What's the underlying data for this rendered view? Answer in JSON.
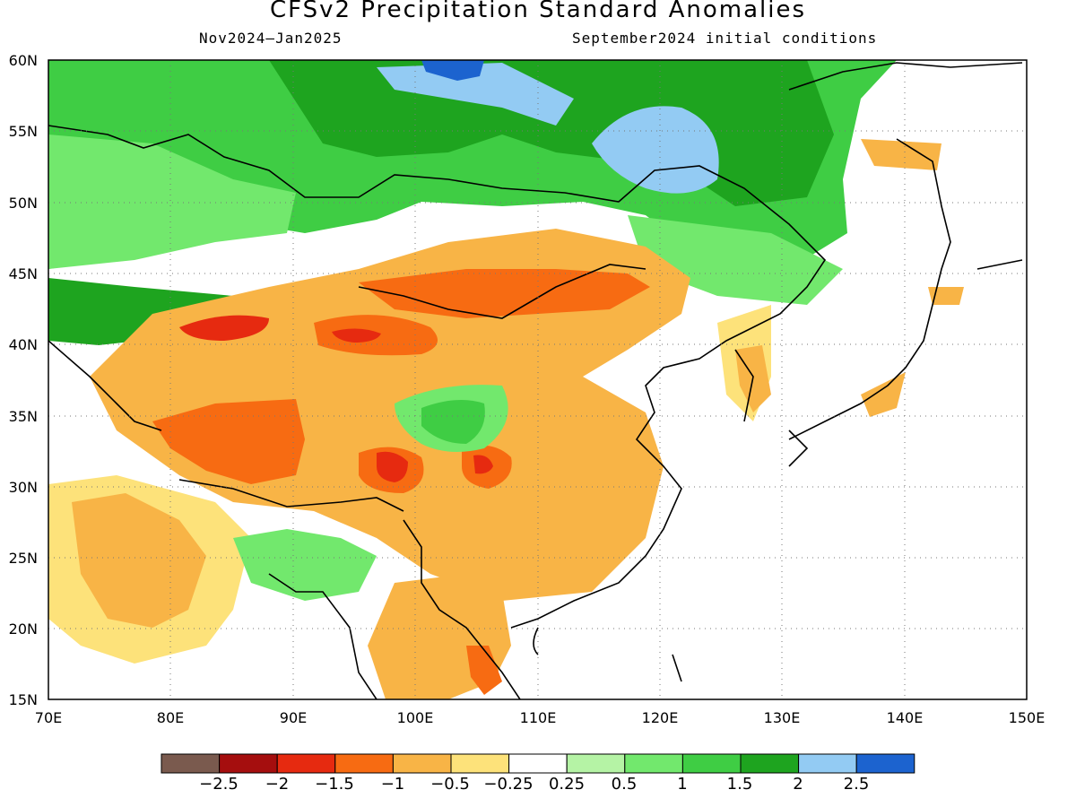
{
  "title": "CFSv2 Precipitation Standard Anomalies",
  "subtitle_left": "Nov2024–Jan2025",
  "subtitle_right": "September2024 initial conditions",
  "map": {
    "lon_range": [
      70,
      150
    ],
    "lat_range": [
      15,
      60
    ],
    "lat_labels": [
      "60N",
      "55N",
      "50N",
      "45N",
      "40N",
      "35N",
      "30N",
      "25N",
      "20N",
      "15N"
    ],
    "lon_labels": [
      "70E",
      "80E",
      "90E",
      "100E",
      "110E",
      "120E",
      "130E",
      "140E",
      "150E"
    ],
    "gridlines": "dotted"
  },
  "colorbar": {
    "colors": [
      "#7a5a4e",
      "#a50e0e",
      "#e62a10",
      "#f76b12",
      "#f8b446",
      "#fde27a",
      "#ffffff",
      "#b5f3a5",
      "#72e86d",
      "#3fcd44",
      "#1ea41f",
      "#93cbf3",
      "#1c63cf"
    ],
    "tick_labels": [
      "−2.5",
      "−2",
      "−1.5",
      "−1",
      "−0.5",
      "−0.25",
      "0.25",
      "0.5",
      "1",
      "1.5",
      "2",
      "2.5"
    ]
  },
  "anomaly_regions": [
    {
      "name": "siberia-wet",
      "level": 1.5,
      "color": "#1ea41f"
    },
    {
      "name": "baikal-very-wet",
      "level": 2,
      "color": "#93cbf3"
    },
    {
      "name": "mongolia-dry",
      "level": -1,
      "color": "#f76b12"
    },
    {
      "name": "tibet-dry",
      "level": -1,
      "color": "#f8b446"
    },
    {
      "name": "central-china-wet",
      "level": 1,
      "color": "#3fcd44"
    },
    {
      "name": "southeast-asia-dry",
      "level": -0.5,
      "color": "#fde27a"
    }
  ]
}
